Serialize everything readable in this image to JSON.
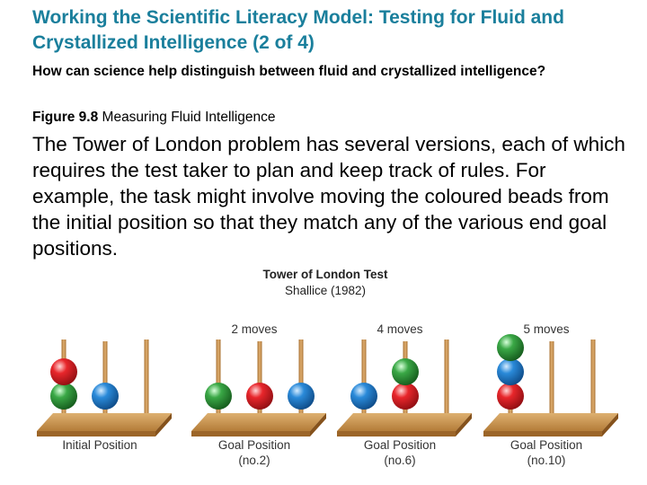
{
  "slide": {
    "title": "Working the Scientific Literacy Model: Testing for Fluid and Crystallized Intelligence (2 of 4)",
    "question": "How can science help distinguish between fluid and crystallized intelligence?",
    "figure_label": "Figure 9.8",
    "figure_title": "Measuring Fluid Intelligence",
    "body": "The Tower of London problem has several versions, each of which requires the test taker to plan and keep track of rules. For example, the task might involve moving the coloured beads from the initial position so that they match any of the various end goal positions."
  },
  "diagram": {
    "title": "Tower of London Test",
    "subtitle": "Shallice (1982)",
    "colors": {
      "red": "#e8262b",
      "green": "#3aa846",
      "blue": "#2a8ad9",
      "wood": "#c9944e"
    },
    "panels": [
      {
        "moves": "",
        "label_line1": "Initial Position",
        "label_line2": "",
        "pegs": [
          [
            "green",
            "red"
          ],
          [
            "blue"
          ],
          []
        ]
      },
      {
        "moves": "2 moves",
        "label_line1": "Goal Position",
        "label_line2": "(no.2)",
        "pegs": [
          [
            "green"
          ],
          [
            "red"
          ],
          [
            "blue"
          ]
        ]
      },
      {
        "moves": "4 moves",
        "label_line1": "Goal Position",
        "label_line2": "(no.6)",
        "pegs": [
          [
            "blue"
          ],
          [
            "red",
            "green"
          ],
          []
        ]
      },
      {
        "moves": "5 moves",
        "label_line1": "Goal Position",
        "label_line2": "(no.10)",
        "pegs": [
          [
            "red",
            "blue",
            "green"
          ],
          [],
          []
        ]
      }
    ]
  }
}
